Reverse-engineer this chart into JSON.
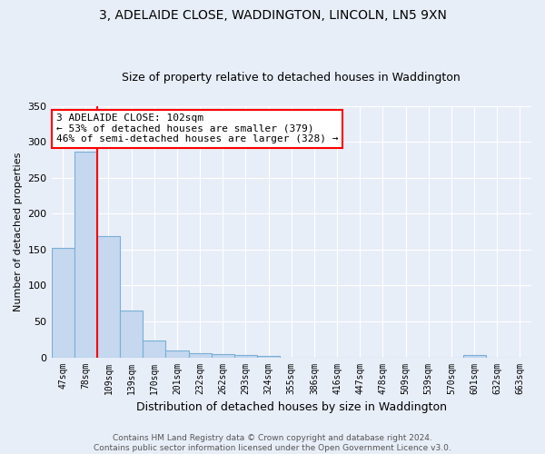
{
  "title": "3, ADELAIDE CLOSE, WADDINGTON, LINCOLN, LN5 9XN",
  "subtitle": "Size of property relative to detached houses in Waddington",
  "xlabel": "Distribution of detached houses by size in Waddington",
  "ylabel": "Number of detached properties",
  "categories": [
    "47sqm",
    "78sqm",
    "109sqm",
    "139sqm",
    "170sqm",
    "201sqm",
    "232sqm",
    "262sqm",
    "293sqm",
    "324sqm",
    "355sqm",
    "386sqm",
    "416sqm",
    "447sqm",
    "478sqm",
    "509sqm",
    "539sqm",
    "570sqm",
    "601sqm",
    "632sqm",
    "663sqm"
  ],
  "values": [
    153,
    287,
    169,
    65,
    24,
    10,
    6,
    5,
    3,
    2,
    0,
    0,
    0,
    0,
    0,
    0,
    0,
    0,
    3,
    0,
    0
  ],
  "bar_color": "#c5d8f0",
  "bar_edge_color": "#7aafd4",
  "red_line_x": 1.5,
  "annotation_line1": "3 ADELAIDE CLOSE: 102sqm",
  "annotation_line2": "← 53% of detached houses are smaller (379)",
  "annotation_line3": "46% of semi-detached houses are larger (328) →",
  "annotation_box_color": "white",
  "annotation_box_edge_color": "red",
  "red_line_color": "red",
  "background_color": "#e8eef8",
  "grid_color": "white",
  "footer": "Contains HM Land Registry data © Crown copyright and database right 2024.\nContains public sector information licensed under the Open Government Licence v3.0.",
  "ylim": [
    0,
    350
  ],
  "title_fontsize": 10,
  "subtitle_fontsize": 9,
  "ylabel_fontsize": 8,
  "xlabel_fontsize": 9
}
